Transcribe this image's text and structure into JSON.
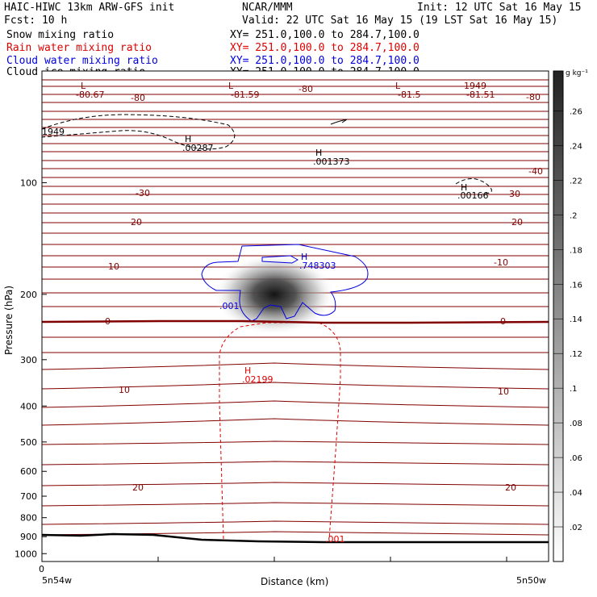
{
  "header": {
    "model": "HAIC-HIWC 13km ARW-GFS init",
    "org": "NCAR/MMM",
    "init": "Init: 12 UTC Sat 16 May 15",
    "fcst": "Fcst:   10 h",
    "valid": "Valid: 22 UTC Sat 16 May 15 (19 LST Sat 16 May 15)",
    "xy_text": "XY= 251.0,100.0 to 284.7,100.0",
    "fields": [
      {
        "name": "Snow mixing ratio",
        "color": "#000000"
      },
      {
        "name": "Rain water mixing ratio",
        "color": "#e00000"
      },
      {
        "name": "Cloud water mixing ratio",
        "color": "#0000e0"
      },
      {
        "name": "Cloud ice mixing ratio",
        "color": "#000000"
      }
    ]
  },
  "chart_data": {
    "type": "cross-section",
    "xlabel": "Distance (km)",
    "ylabel": "Pressure (hPa)",
    "ylim": [
      1050,
      50
    ],
    "y_scale": "log",
    "y_ticks": [
      "100",
      "200",
      "300",
      "400",
      "500",
      "600",
      "700",
      "800",
      "900",
      "1000"
    ],
    "x_tick_labels": {
      "origin": "0",
      "left": "5n54w",
      "right": "5n50w"
    },
    "temperature_contours": {
      "color": "#800000",
      "labels": [
        "-80.67",
        "-80",
        "-81.59",
        "-80",
        "-81.5",
        "-81.51",
        "-80",
        "-40",
        "-30",
        "-30",
        "-20",
        "-20",
        "-10",
        "-10",
        "0",
        "0",
        "10",
        "10",
        "20",
        "20"
      ]
    },
    "snow": {
      "color": "#000000",
      "labels": [
        "H",
        ".00287",
        "H",
        ".001373",
        "H",
        ".00166",
        "L",
        "L",
        "L",
        "L",
        "1949"
      ]
    },
    "rain": {
      "color": "#e00000",
      "labels": [
        "H",
        ".02199",
        ".001"
      ]
    },
    "cloud_water": {
      "color": "#0000e0",
      "labels": [
        "H",
        ".748303",
        ".001"
      ]
    },
    "colorbar": {
      "unit": "g kg⁻¹",
      "ticks": [
        ".02",
        ".04",
        ".06",
        ".08",
        ".1",
        ".12",
        ".14",
        ".16",
        ".18",
        ".2",
        ".22",
        ".24",
        ".26"
      ]
    }
  }
}
